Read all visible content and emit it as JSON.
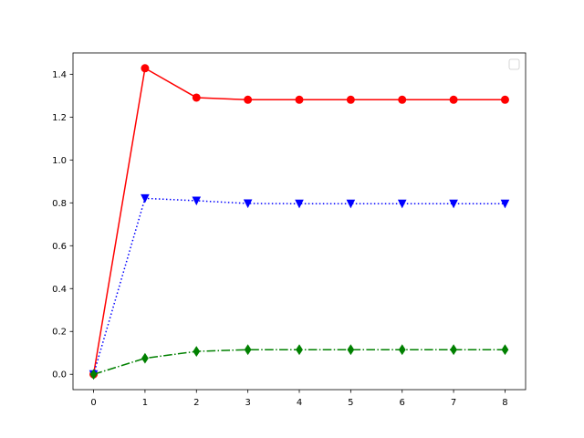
{
  "chart_data": {
    "type": "line",
    "x": [
      0,
      1,
      2,
      3,
      4,
      5,
      6,
      7,
      8
    ],
    "series": [
      {
        "color": "#ff0000",
        "linestyle": "solid",
        "marker": "circle",
        "values": [
          0,
          1.428,
          1.291,
          1.281,
          1.281,
          1.281,
          1.281,
          1.281,
          1.281
        ]
      },
      {
        "color": "#0000ff",
        "linestyle": "dotted",
        "marker": "triangle-down",
        "values": [
          0,
          0.821,
          0.81,
          0.797,
          0.796,
          0.796,
          0.796,
          0.796,
          0.796
        ]
      },
      {
        "color": "#008000",
        "linestyle": "dashdot",
        "marker": "thin-diamond",
        "values": [
          0,
          0.075,
          0.107,
          0.115,
          0.115,
          0.115,
          0.115,
          0.115,
          0.115
        ]
      }
    ],
    "xlim": [
      -0.4,
      8.4
    ],
    "ylim": [
      -0.0714,
      1.4994
    ],
    "xticks": [
      0,
      1,
      2,
      3,
      4,
      5,
      6,
      7,
      8
    ],
    "yticks": [
      {
        "value": 0,
        "label": "0.0"
      },
      0.2,
      0.4,
      0.6,
      0.8,
      {
        "value": 1,
        "label": "1.0"
      },
      1.2,
      1.4
    ],
    "legend": "upper right"
  }
}
